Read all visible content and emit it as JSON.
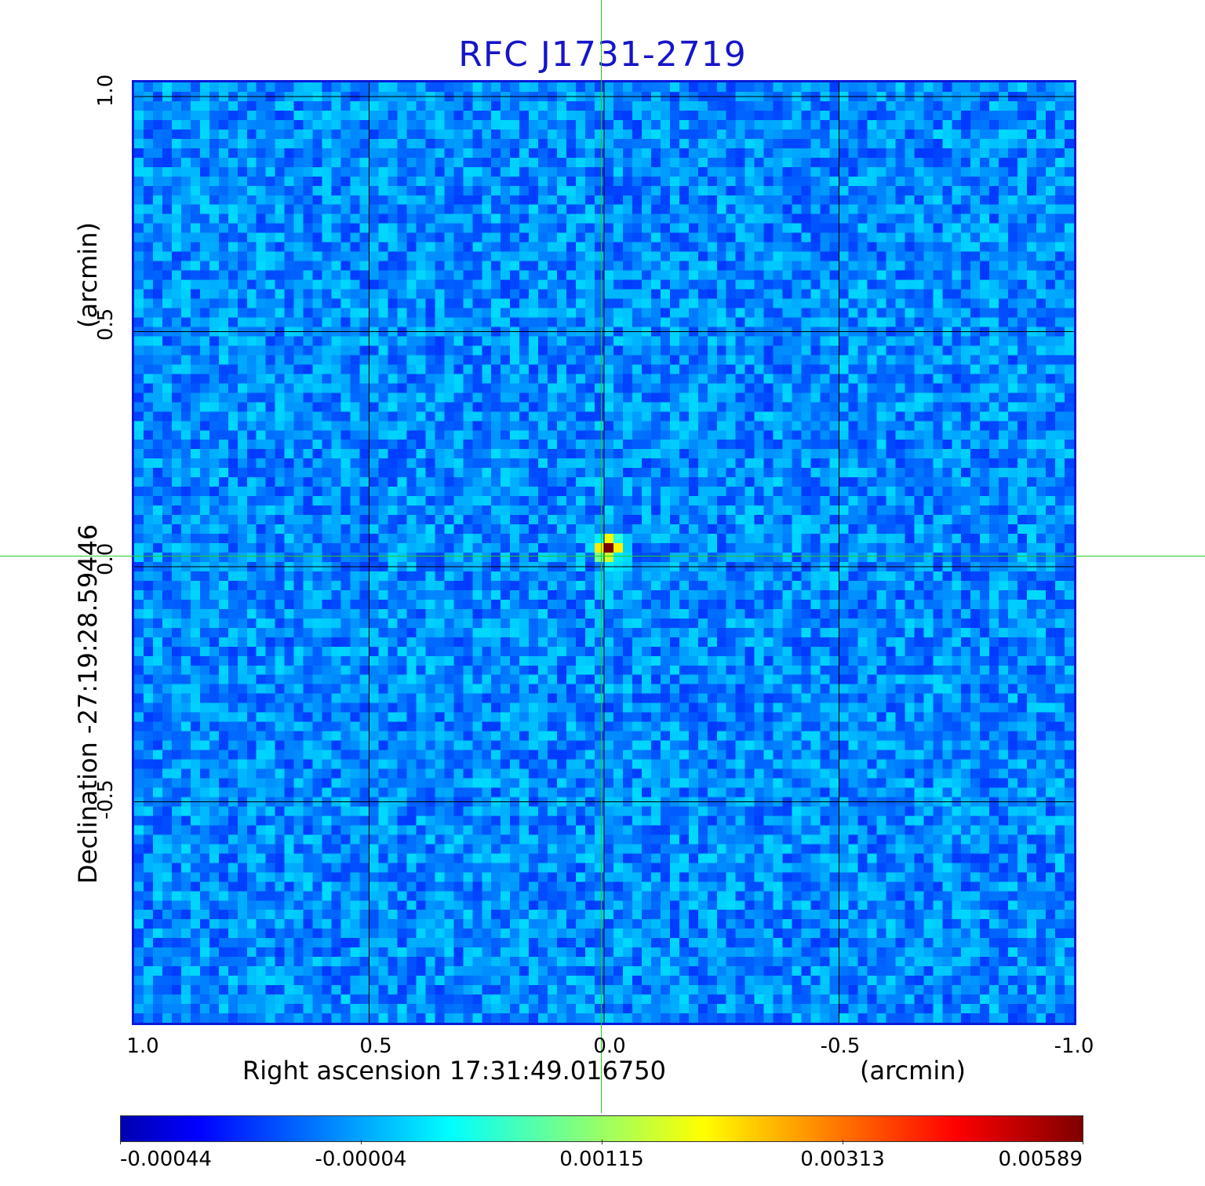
{
  "chart_data": {
    "type": "heatmap",
    "title": "RFC J1731-2719",
    "xlabel": "Right ascension  17:31:49.016750",
    "xunit": "(arcmin)",
    "ylabel": "Declination  -27:19:28.59446",
    "yunit": "(arcmin)",
    "x_ticks": [
      "1.0",
      "0.5",
      "0.0",
      "-0.5",
      "-1.0"
    ],
    "y_ticks": [
      "1.0",
      "0.5",
      "0.0",
      "-0.5"
    ],
    "xlim": [
      1.0,
      -1.0
    ],
    "ylim": [
      -1.0,
      1.0
    ],
    "grid": true,
    "colormap": "jet",
    "colorbar": {
      "ticks": [
        "-0.00044",
        "-0.00004",
        "0.00115",
        "0.00313",
        "0.00589"
      ],
      "range": [
        -0.00044,
        0.00589
      ]
    },
    "peak": {
      "x_arcmin": 0.0,
      "y_arcmin": 0.0,
      "value": 0.00589
    }
  },
  "colors": {
    "title": "#1515c8",
    "frame": "#0a1ad8",
    "crosshair": "#22cc22",
    "grid": "#000000"
  }
}
